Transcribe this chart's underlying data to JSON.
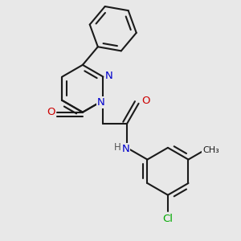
{
  "bg_color": "#e8e8e8",
  "bond_color": "#1a1a1a",
  "bond_width": 1.5,
  "atom_colors": {
    "N": "#0000cc",
    "O": "#cc0000",
    "Cl": "#00aa00",
    "C": "#1a1a1a",
    "H": "#555555"
  },
  "font_size": 9.5,
  "fig_width": 3.0,
  "fig_height": 3.0,
  "dpi": 100
}
